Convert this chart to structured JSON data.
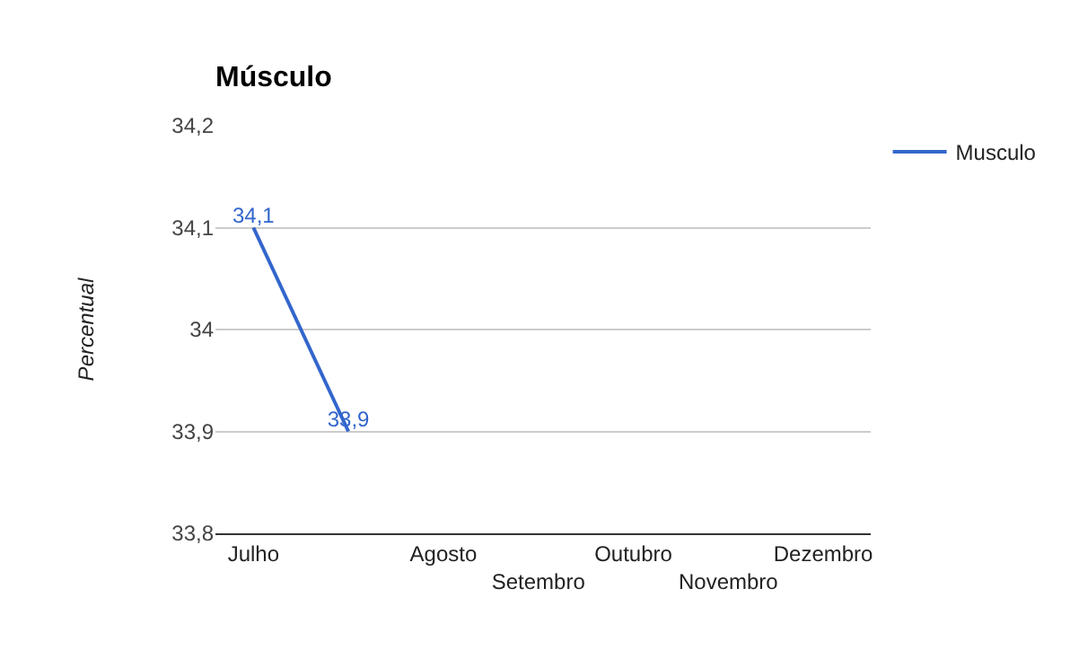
{
  "chart_data": {
    "type": "line",
    "title": "Músculo",
    "ylabel": "Percentual",
    "categories": [
      "Julho",
      null,
      "Agosto",
      "Setembro",
      "Outubro",
      "Novembro",
      "Dezembro"
    ],
    "series": [
      {
        "name": "Musculo",
        "color": "#3366cc",
        "values": [
          34.1,
          33.9,
          null,
          null,
          null,
          null,
          null
        ],
        "value_labels": [
          "34,1",
          "33,9",
          null,
          null,
          null,
          null,
          null
        ]
      }
    ],
    "ylim": [
      33.8,
      34.2
    ],
    "yticks": [
      {
        "value": 33.8,
        "label": "33,8"
      },
      {
        "value": 33.9,
        "label": "33,9"
      },
      34,
      {
        "value": 34.1,
        "label": "34,1"
      },
      {
        "value": 34.2,
        "label": "34,2"
      }
    ],
    "grid": "y",
    "legend": "right",
    "marker": "none",
    "line_style": "solid"
  }
}
